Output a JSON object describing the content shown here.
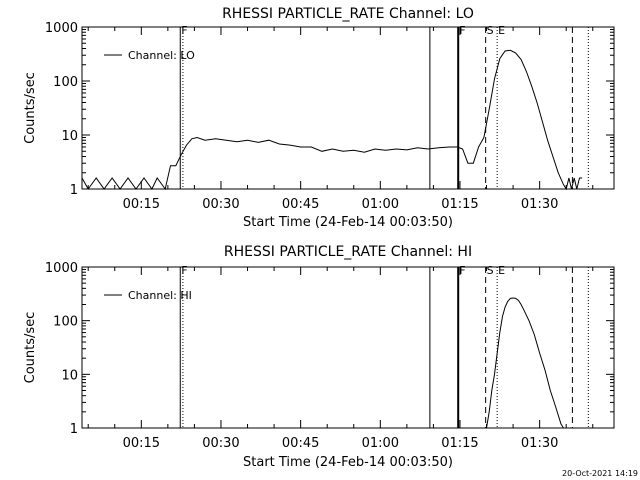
{
  "footer_timestamp": "20-Oct-2021 14:19",
  "chart_data": [
    {
      "type": "line",
      "title": "RHESSI PARTICLE_RATE Channel: LO",
      "xlabel": "Start Time (24-Feb-14 00:03:50)",
      "ylabel": "Counts/sec",
      "y_scale": "log",
      "xlim": [
        "00:03:50",
        "01:44:00"
      ],
      "ylim": [
        1,
        1000
      ],
      "xticks": [
        "00:15",
        "00:30",
        "00:45",
        "01:00",
        "01:15",
        "01:30"
      ],
      "yticks": [
        "1",
        "10",
        "100",
        "1000"
      ],
      "legend": {
        "placement": "top-left",
        "entries": [
          "Channel: LO"
        ]
      },
      "markers": [
        {
          "label": "F",
          "time": "00:22:20",
          "style": "solid"
        },
        {
          "label": "",
          "time": "00:22:50",
          "style": "dotted"
        },
        {
          "label": "",
          "time": "01:09:20",
          "style": "solid"
        },
        {
          "label": "F",
          "time": "01:14:40",
          "style": "solid-thick"
        },
        {
          "label": "S",
          "time": "01:19:50",
          "style": "dashed"
        },
        {
          "label": "E",
          "time": "01:22:00",
          "style": "dotted"
        },
        {
          "label": "",
          "time": "01:36:10",
          "style": "dashed"
        },
        {
          "label": "",
          "time": "01:39:10",
          "style": "dotted"
        }
      ],
      "series": [
        {
          "name": "Channel: LO",
          "x": [
            "00:03:50",
            "00:05:00",
            "00:06:30",
            "00:08:00",
            "00:09:30",
            "00:11:00",
            "00:12:30",
            "00:14:00",
            "00:15:30",
            "00:17:00",
            "00:18:00",
            "00:19:30",
            "00:20:30",
            "00:21:30",
            "00:22:30",
            "00:23:30",
            "00:24:30",
            "00:25:30",
            "00:27:00",
            "00:29:00",
            "00:31:00",
            "00:33:00",
            "00:35:00",
            "00:37:00",
            "00:39:00",
            "00:41:00",
            "00:43:00",
            "00:45:00",
            "00:47:00",
            "00:49:00",
            "00:51:00",
            "00:53:00",
            "00:55:00",
            "00:57:00",
            "00:59:00",
            "01:01:00",
            "01:03:00",
            "01:05:00",
            "01:07:00",
            "01:09:00",
            "01:11:00",
            "01:13:00",
            "01:14:30",
            "01:15:30",
            "01:16:30",
            "01:17:30",
            "01:18:30",
            "01:19:30",
            "01:20:30",
            "01:21:30",
            "01:22:30",
            "01:23:30",
            "01:24:30",
            "01:25:30",
            "01:26:30",
            "01:27:30",
            "01:28:30",
            "01:29:30",
            "01:30:30",
            "01:31:30",
            "01:32:30",
            "01:33:30",
            "01:34:30",
            "01:35:00",
            "01:35:30",
            "01:36:00",
            "01:36:30",
            "01:37:00",
            "01:37:30",
            "01:38:00"
          ],
          "values": [
            1.6,
            1,
            1.6,
            1,
            1.6,
            1,
            1.6,
            1,
            1.6,
            1,
            1.6,
            1,
            2.7,
            2.7,
            4.3,
            6.5,
            8.5,
            9,
            8,
            8.5,
            8,
            7.5,
            8,
            7.3,
            8,
            6.8,
            6.5,
            6,
            6,
            5,
            5.5,
            5,
            5.2,
            4.8,
            5.5,
            5.2,
            5.5,
            5.3,
            5.8,
            5.5,
            5.8,
            6,
            6,
            5.5,
            3,
            3,
            6,
            9,
            30,
            110,
            260,
            360,
            370,
            330,
            250,
            150,
            80,
            40,
            18,
            8,
            4,
            2,
            1.2,
            1,
            1.6,
            1,
            1.6,
            1,
            1.6,
            1.6
          ]
        }
      ]
    },
    {
      "type": "line",
      "title": "RHESSI PARTICLE_RATE Channel: HI",
      "xlabel": "Start Time (24-Feb-14 00:03:50)",
      "ylabel": "Counts/sec",
      "y_scale": "log",
      "xlim": [
        "00:03:50",
        "01:44:00"
      ],
      "ylim": [
        1,
        1000
      ],
      "xticks": [
        "00:15",
        "00:30",
        "00:45",
        "01:00",
        "01:15",
        "01:30"
      ],
      "yticks": [
        "1",
        "10",
        "100",
        "1000"
      ],
      "legend": {
        "placement": "top-left",
        "entries": [
          "Channel: HI"
        ]
      },
      "markers": [
        {
          "label": "F",
          "time": "00:22:20",
          "style": "solid"
        },
        {
          "label": "",
          "time": "00:22:50",
          "style": "dotted"
        },
        {
          "label": "",
          "time": "01:09:20",
          "style": "solid"
        },
        {
          "label": "F",
          "time": "01:14:40",
          "style": "solid-thick"
        },
        {
          "label": "S",
          "time": "01:19:50",
          "style": "dashed"
        },
        {
          "label": "E",
          "time": "01:22:00",
          "style": "dotted"
        },
        {
          "label": "",
          "time": "01:36:10",
          "style": "dashed"
        },
        {
          "label": "",
          "time": "01:39:10",
          "style": "dotted"
        }
      ],
      "series": [
        {
          "name": "Channel: HI",
          "x": [
            "01:20:00",
            "01:20:30",
            "01:21:00",
            "01:21:30",
            "01:22:00",
            "01:22:30",
            "01:23:00",
            "01:23:30",
            "01:24:00",
            "01:24:30",
            "01:25:00",
            "01:25:30",
            "01:26:00",
            "01:26:30",
            "01:27:00",
            "01:28:00",
            "01:29:00",
            "01:30:00",
            "01:31:00",
            "01:32:00",
            "01:33:00",
            "01:34:00",
            "01:34:30"
          ],
          "values": [
            1,
            2,
            5,
            10,
            25,
            60,
            120,
            180,
            230,
            260,
            265,
            260,
            240,
            200,
            160,
            100,
            55,
            25,
            12,
            5,
            2.5,
            1.2,
            1
          ]
        }
      ]
    }
  ]
}
